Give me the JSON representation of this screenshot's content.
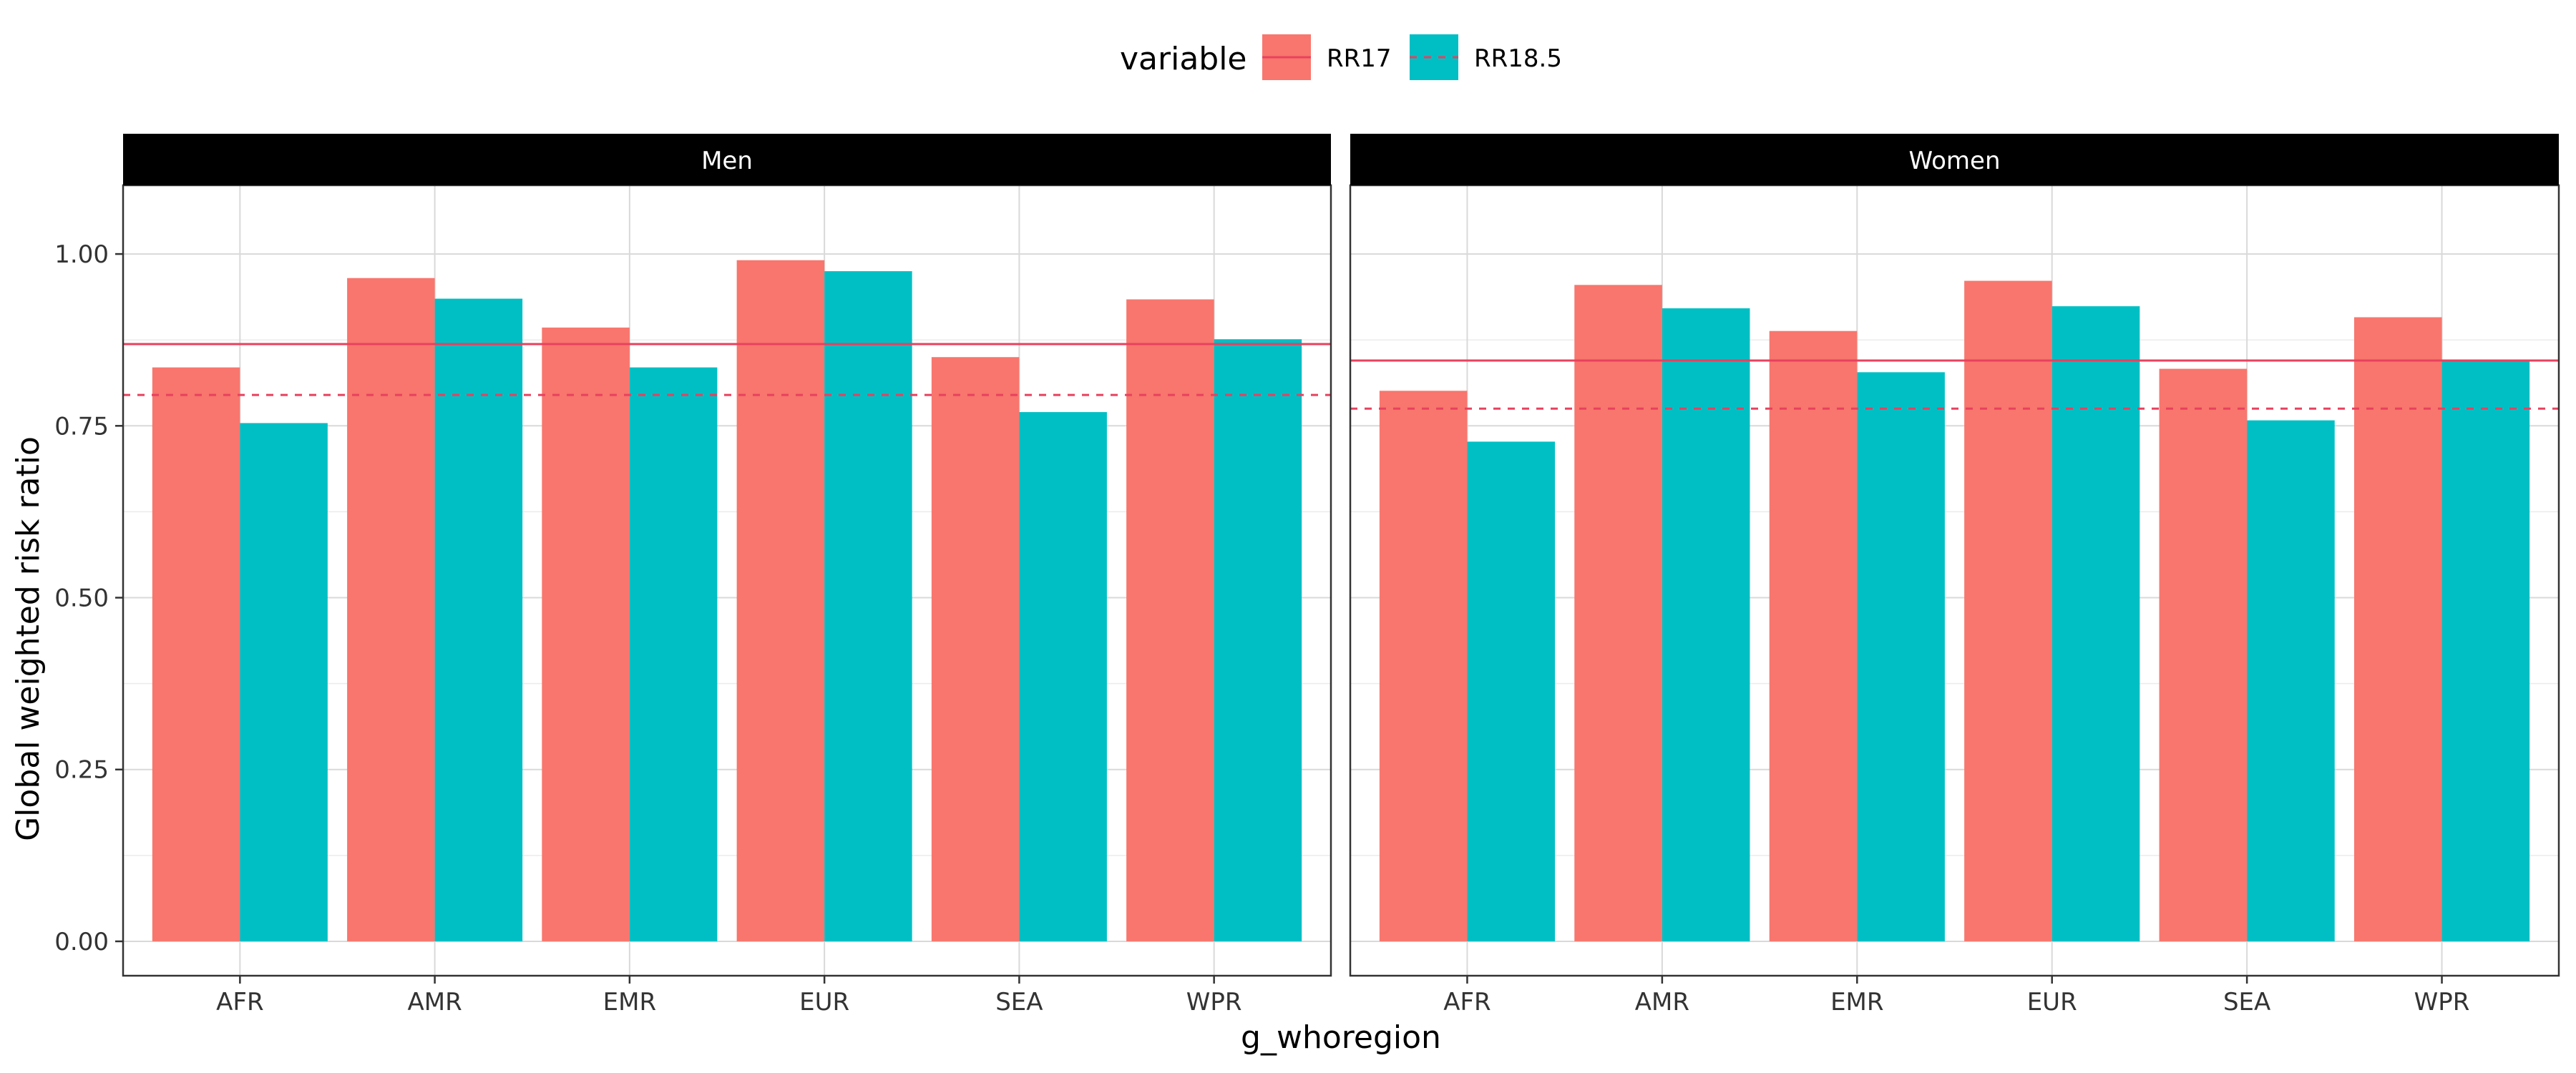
{
  "chart_data": {
    "type": "bar",
    "legend": {
      "title": "variable",
      "placement": "top",
      "entries": [
        {
          "label": "RR17",
          "fill": "#F8766D",
          "line": "#E8415E",
          "dash": "solid"
        },
        {
          "label": "RR18.5",
          "fill": "#00BFC4",
          "line": "#E8415E",
          "dash": "dashed"
        }
      ]
    },
    "xlabel": "g_whoregion",
    "ylabel": "Global weighted risk ratio",
    "ylim": [
      -0.05,
      1.1
    ],
    "yticks": [
      {
        "value": 0.0,
        "label": "0.00"
      },
      {
        "value": 0.25,
        "label": "0.25"
      },
      {
        "value": 0.5,
        "label": "0.50"
      },
      {
        "value": 0.75,
        "label": "0.75"
      },
      {
        "value": 1.0,
        "label": "1.00"
      }
    ],
    "grid": true,
    "categories": [
      "AFR",
      "AMR",
      "EMR",
      "EUR",
      "SEA",
      "WPR"
    ],
    "panels": [
      {
        "title": "Men",
        "series": [
          {
            "name": "RR17",
            "values": [
              0.835,
              0.965,
              0.893,
              0.991,
              0.85,
              0.934
            ]
          },
          {
            "name": "RR18.5",
            "values": [
              0.754,
              0.935,
              0.835,
              0.975,
              0.77,
              0.876
            ]
          }
        ],
        "reference_lines": [
          {
            "name": "RR17",
            "value": 0.869
          },
          {
            "name": "RR18.5",
            "value": 0.795
          }
        ]
      },
      {
        "title": "Women",
        "series": [
          {
            "name": "RR17",
            "values": [
              0.801,
              0.955,
              0.888,
              0.961,
              0.833,
              0.908
            ]
          },
          {
            "name": "RR18.5",
            "values": [
              0.727,
              0.921,
              0.828,
              0.924,
              0.758,
              0.845
            ]
          }
        ],
        "reference_lines": [
          {
            "name": "RR17",
            "value": 0.845
          },
          {
            "name": "RR18.5",
            "value": 0.775
          }
        ]
      }
    ]
  }
}
